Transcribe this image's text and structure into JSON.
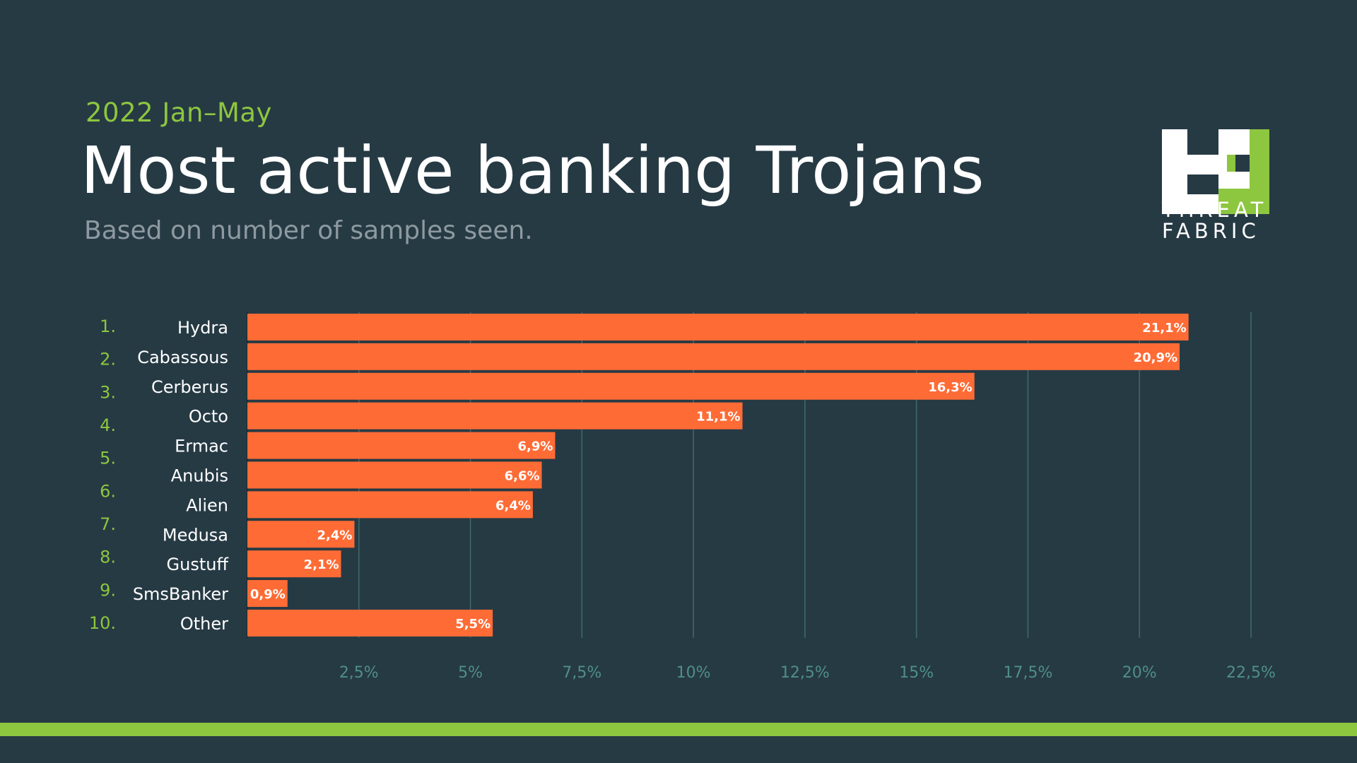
{
  "header": {
    "period": "2022 Jan–May",
    "title": "Most active banking Trojans",
    "subtitle": "Based on number of samples seen."
  },
  "logo": {
    "line1": "THREAT",
    "line2": "FABRIC",
    "icon": "threatfabric-logo-icon"
  },
  "colors": {
    "background": "#263a44",
    "bar": "#ff6b35",
    "accent": "#8dc63f",
    "grid": "#3f6a6e",
    "tick_label": "#4f8e8b",
    "label": "#ffffff",
    "rank": "#8dc63f"
  },
  "chart_data": {
    "type": "bar",
    "orientation": "horizontal",
    "categories": [
      "Hydra",
      "Cabassous",
      "Cerberus",
      "Octo",
      "Ermac",
      "Anubis",
      "Alien",
      "Medusa",
      "Gustuff",
      "SmsBanker",
      "Other"
    ],
    "values": [
      21.1,
      20.9,
      16.3,
      11.1,
      6.9,
      6.6,
      6.4,
      2.4,
      2.1,
      0.9,
      5.5
    ],
    "data_labels": [
      "21,1%",
      "20,9%",
      "16,3%",
      "11,1%",
      "6,9%",
      "6,6%",
      "6,4%",
      "2,4%",
      "2,1%",
      "0,9%",
      "5,5%"
    ],
    "ranks": [
      "1.",
      "2.",
      "3.",
      "4.",
      "5.",
      "6.",
      "7.",
      "8.",
      "9.",
      "10."
    ],
    "xlim": [
      0,
      22.5
    ],
    "xticks": [
      2.5,
      5,
      7.5,
      10,
      12.5,
      15,
      17.5,
      20,
      22.5
    ],
    "xtick_labels": [
      "2,5%",
      "5%",
      "7,5%",
      "10%",
      "12,5%",
      "15%",
      "17,5%",
      "20%",
      "22,5%"
    ],
    "grid": "vertical",
    "title": "Most active banking Trojans",
    "xlabel": "",
    "ylabel": ""
  }
}
